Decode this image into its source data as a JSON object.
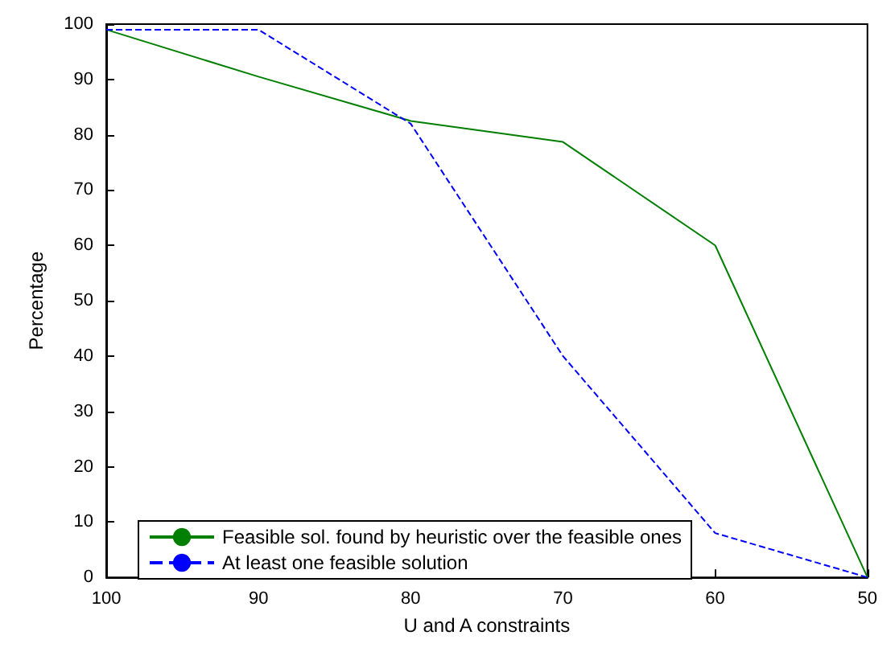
{
  "chart_data": {
    "type": "line",
    "xlabel": "U and A constraints",
    "ylabel": "Percentage",
    "x": [
      100,
      90,
      80,
      70,
      60,
      50
    ],
    "series": [
      {
        "name": "Feasible sol. found by heuristic over the feasible ones",
        "color": "#007f00",
        "values": [
          99,
          90.5,
          82.5,
          78.7,
          60,
          0
        ],
        "line_style": "solid"
      },
      {
        "name": "At least one feasible solution",
        "color": "#0000ff",
        "values": [
          99,
          99,
          82,
          40,
          8,
          0
        ],
        "line_style": "dashed"
      }
    ],
    "xlim": [
      100,
      50
    ],
    "xticks": [
      100,
      90,
      80,
      70,
      60,
      50
    ],
    "ylim": [
      0,
      100
    ],
    "yticks": [
      0,
      10,
      20,
      30,
      40,
      50,
      60,
      70,
      80,
      90,
      100
    ],
    "grid": false,
    "legend": "bottom left",
    "marker": "none"
  }
}
